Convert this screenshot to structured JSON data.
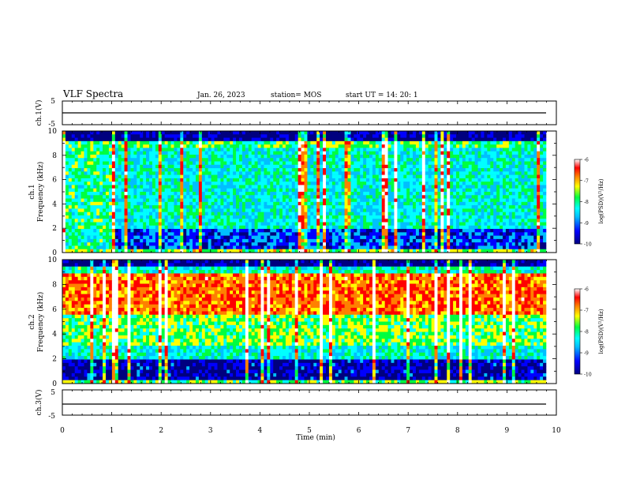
{
  "header": {
    "title": "VLF Spectra",
    "date": "Jan. 26, 2023",
    "station": "station= MOS",
    "start": "start UT =  14: 20: 1"
  },
  "colors": {
    "background": "#ffffff",
    "axes": "#000000",
    "colormap": [
      "#00007f",
      "#0000ff",
      "#00bfff",
      "#00ffff",
      "#00ff40",
      "#ffff00",
      "#ff8000",
      "#ff0000",
      "#ffffff"
    ]
  },
  "chart_data": [
    {
      "type": "line",
      "panel": "ch1-waveform",
      "ylabel": "ch.1(V)",
      "ylim": [
        -5,
        5
      ],
      "yticks": [
        "5",
        "-5"
      ],
      "x": [
        0,
        10
      ],
      "values": [
        0,
        0
      ],
      "xlim": [
        0,
        10
      ]
    },
    {
      "type": "heatmap",
      "panel": "ch1-spectrogram",
      "ylabel": "Frequency (kHz)",
      "ylabel_prefix": "ch.1",
      "ylim": [
        0,
        10
      ],
      "yticks": [
        "0",
        "2",
        "4",
        "6",
        "8",
        "10"
      ],
      "xlim": [
        0,
        10
      ],
      "colorbar": {
        "label": "log(PSD)(V²/Hz)",
        "ticks": [
          "-6",
          "-7",
          "-8",
          "-9",
          "-10"
        ],
        "range": [
          -10,
          -6
        ]
      }
    },
    {
      "type": "heatmap",
      "panel": "ch2-spectrogram",
      "ylabel": "Frequency (kHz)",
      "ylabel_prefix": "ch.2",
      "ylim": [
        0,
        10
      ],
      "yticks": [
        "0",
        "2",
        "4",
        "6",
        "8",
        "10"
      ],
      "xlim": [
        0,
        10
      ],
      "colorbar": {
        "label": "log(PSD)(V²/Hz)",
        "ticks": [
          "-6",
          "-7",
          "-8",
          "-9",
          "-10"
        ],
        "range": [
          -10,
          -6
        ]
      }
    },
    {
      "type": "line",
      "panel": "ch3-waveform",
      "ylabel": "ch.3(V)",
      "ylim": [
        -5,
        5
      ],
      "yticks": [
        "5",
        "-5"
      ],
      "x": [
        0,
        10
      ],
      "values": [
        0,
        0
      ],
      "xlim": [
        0,
        10
      ]
    }
  ],
  "xaxis": {
    "label": "Time (min)",
    "ticks": [
      "0",
      "1",
      "2",
      "3",
      "4",
      "5",
      "6",
      "7",
      "8",
      "9",
      "10"
    ]
  }
}
